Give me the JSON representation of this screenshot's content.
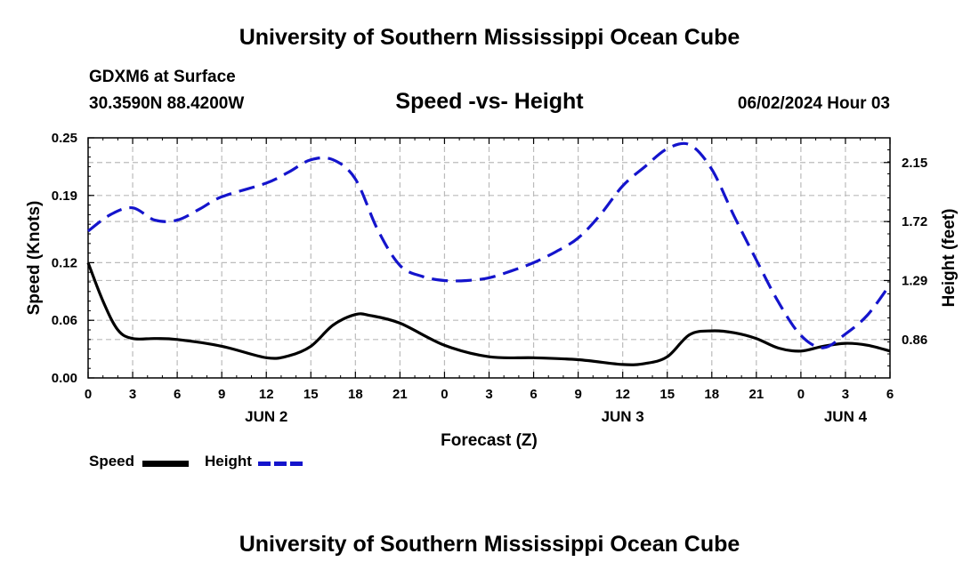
{
  "header": {
    "title": "University of Southern Mississippi Ocean Cube",
    "station": "GDXM6 at Surface",
    "coords": "30.3590N  88.4200W",
    "subtitle": "Speed -vs- Height",
    "datestamp": "06/02/2024 Hour 03",
    "footer_title": "University of Southern Mississippi Ocean Cube"
  },
  "legend": {
    "speed": "Speed",
    "height": "Height"
  },
  "colors": {
    "speed": "#000000",
    "height": "#1414cc",
    "grid": "#bbbbbb"
  },
  "chart_data": {
    "type": "line",
    "title": "Speed -vs- Height",
    "xlabel": "Forecast (Z)",
    "ylabel_left": "Speed (Knots)",
    "ylabel_right": "Height (feet)",
    "xlim": [
      0,
      54
    ],
    "x_ticks": [
      0,
      3,
      6,
      9,
      12,
      15,
      18,
      21,
      24,
      27,
      30,
      33,
      36,
      39,
      42,
      45,
      48,
      51,
      54
    ],
    "x_tick_labels": [
      "0",
      "3",
      "6",
      "9",
      "12",
      "15",
      "18",
      "21",
      "0",
      "3",
      "6",
      "9",
      "12",
      "15",
      "18",
      "21",
      "0",
      "3",
      "6"
    ],
    "day_labels": [
      {
        "x": 12,
        "label": "JUN 2"
      },
      {
        "x": 36,
        "label": "JUN 3"
      },
      {
        "x": 51,
        "label": "JUN 4"
      }
    ],
    "ylim_left": [
      0,
      0.25
    ],
    "y_ticks_left": [
      0,
      0.06,
      0.12,
      0.19,
      0.25
    ],
    "y_tick_labels_left": [
      "0.00",
      "0.06",
      "0.12",
      "0.19",
      "0.25"
    ],
    "ylim_right": [
      0.58,
      2.33
    ],
    "y_ticks_right": [
      0.86,
      1.29,
      1.72,
      2.15
    ],
    "y_tick_labels_right": [
      "0.86",
      "1.29",
      "1.72",
      "2.15"
    ],
    "grid": true,
    "series": [
      {
        "name": "Speed",
        "axis": "left",
        "style": "solid",
        "color": "#000000",
        "x": [
          0,
          1,
          2,
          3,
          4.5,
          6,
          9,
          12,
          13.5,
          15,
          16.5,
          18,
          19,
          21,
          24,
          27,
          30,
          33,
          36,
          37.5,
          39,
          40.5,
          42,
          43.5,
          45,
          46.5,
          48,
          49.5,
          51,
          52.5,
          54
        ],
        "values": [
          0.12,
          0.08,
          0.05,
          0.041,
          0.041,
          0.04,
          0.033,
          0.021,
          0.023,
          0.033,
          0.055,
          0.066,
          0.065,
          0.057,
          0.034,
          0.022,
          0.021,
          0.019,
          0.014,
          0.015,
          0.022,
          0.045,
          0.049,
          0.047,
          0.041,
          0.031,
          0.028,
          0.033,
          0.036,
          0.034,
          0.028
        ]
      },
      {
        "name": "Height",
        "axis": "right",
        "style": "dashed",
        "color": "#1414cc",
        "x": [
          0,
          1.5,
          3,
          4.5,
          6,
          7.5,
          9,
          12,
          13.5,
          15,
          16.5,
          18,
          19.5,
          21,
          22.5,
          24,
          25.5,
          27,
          28.5,
          30,
          31.5,
          33,
          34.5,
          36,
          37.5,
          39,
          40.5,
          42,
          43.5,
          45,
          46.5,
          48,
          49.5,
          51,
          52.5,
          54
        ],
        "values": [
          1.65,
          1.77,
          1.82,
          1.73,
          1.73,
          1.81,
          1.9,
          2.0,
          2.08,
          2.17,
          2.17,
          2.03,
          1.66,
          1.4,
          1.32,
          1.29,
          1.29,
          1.31,
          1.36,
          1.42,
          1.5,
          1.6,
          1.77,
          1.98,
          2.12,
          2.25,
          2.28,
          2.1,
          1.76,
          1.44,
          1.13,
          0.89,
          0.8,
          0.9,
          1.04,
          1.26
        ]
      }
    ]
  }
}
